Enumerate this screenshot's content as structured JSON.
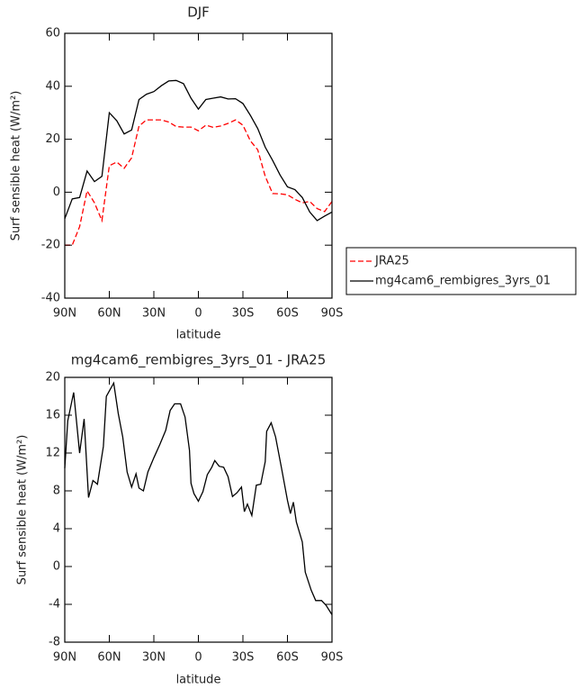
{
  "chart_data": [
    {
      "type": "line",
      "title": "DJF",
      "xlabel": "latitude",
      "ylabel": "Surf sensible heat (W/m²)",
      "x": [
        90,
        85,
        80,
        75,
        70,
        65,
        60,
        55,
        50,
        45,
        40,
        35,
        30,
        25,
        20,
        15,
        10,
        5,
        0,
        -5,
        -10,
        -15,
        -20,
        -25,
        -30,
        -35,
        -40,
        -45,
        -50,
        -55,
        -60,
        -65,
        -70,
        -75,
        -80,
        -85,
        -90
      ],
      "series": [
        {
          "name": "JRA25",
          "color": "#ff0000",
          "linestyle": "dashed",
          "values": [
            -20,
            -20,
            -13,
            0.5,
            -4,
            -10.7,
            10,
            11.4,
            9,
            13,
            25,
            27.3,
            27.3,
            27.3,
            26.5,
            24.8,
            24.6,
            24.6,
            23.2,
            25.3,
            24.5,
            25,
            26,
            27.3,
            25.3,
            19.4,
            16,
            6,
            -0.5,
            -0.6,
            -1,
            -2.7,
            -4,
            -3.5,
            -6.2,
            -7.3,
            -3.5
          ]
        },
        {
          "name": "mg4cam6_rembigres_3yrs_01",
          "color": "#000000",
          "linestyle": "solid",
          "values": [
            -10,
            -2.5,
            -2,
            8,
            4,
            6,
            30,
            27,
            22,
            23.5,
            35,
            37,
            38,
            40.2,
            42,
            42.2,
            41,
            35.5,
            31.4,
            35,
            35.5,
            36,
            35.2,
            35.3,
            33.5,
            29,
            24,
            17,
            12,
            6.5,
            2,
            1,
            -2,
            -7.5,
            -10.7,
            -9,
            -7.5
          ]
        }
      ],
      "xlim": [
        90,
        -90
      ],
      "xticks": [
        {
          "value": 90,
          "label": "90N"
        },
        {
          "value": 60,
          "label": "60N"
        },
        {
          "value": 30,
          "label": "30N"
        },
        0,
        {
          "value": -30,
          "label": "30S"
        },
        {
          "value": -60,
          "label": "60S"
        },
        {
          "value": -90,
          "label": "90S"
        }
      ],
      "ylim": [
        -40,
        60
      ],
      "yticks": [
        -40,
        -20,
        0,
        20,
        40,
        60
      ],
      "legend": "right"
    },
    {
      "type": "line",
      "title": "mg4cam6_rembigres_3yrs_01 - JRA25",
      "xlabel": "latitude",
      "ylabel": "Surf sensible heat (W/m²)",
      "x": [
        90,
        88,
        84,
        80,
        77,
        74,
        71,
        68,
        64,
        62,
        57,
        54,
        51,
        48,
        45,
        42,
        40,
        37,
        34,
        30,
        26,
        22,
        19,
        16,
        12,
        9,
        6,
        5,
        3,
        0,
        -3,
        -6,
        -9,
        -11,
        -14,
        -17,
        -20,
        -23,
        -26,
        -29,
        -31,
        -33,
        -36,
        -39,
        -42,
        -45,
        -46,
        -49,
        -52,
        -56,
        -60,
        -62,
        -64,
        -66,
        -70,
        -72,
        -76,
        -79,
        -83,
        -86,
        -90
      ],
      "series": [
        {
          "color": "#000000",
          "linestyle": "solid",
          "values": [
            10.4,
            15.4,
            18.4,
            12,
            15.6,
            7.3,
            9.1,
            8.7,
            12.7,
            18,
            19.4,
            16.2,
            13.7,
            10,
            8.4,
            9.8,
            8.3,
            8,
            10,
            11.5,
            12.9,
            14.4,
            16.5,
            17.2,
            17.2,
            15.8,
            12.3,
            8.8,
            7.7,
            6.9,
            7.9,
            9.7,
            10.5,
            11.2,
            10.6,
            10.5,
            9.5,
            7.4,
            7.8,
            8.4,
            5.8,
            6.6,
            5.4,
            8.6,
            8.7,
            11.1,
            14.3,
            15.2,
            13.7,
            10.4,
            7,
            5.6,
            6.8,
            4.7,
            2.6,
            -0.6,
            -2.5,
            -3.6,
            -3.6,
            -4.1,
            -5.1
          ]
        }
      ],
      "xlim": [
        90,
        -90
      ],
      "xticks": [
        {
          "value": 90,
          "label": "90N"
        },
        {
          "value": 60,
          "label": "60N"
        },
        {
          "value": 30,
          "label": "30N"
        },
        0,
        {
          "value": -30,
          "label": "30S"
        },
        {
          "value": -60,
          "label": "60S"
        },
        {
          "value": -90,
          "label": "90S"
        }
      ],
      "ylim": [
        -8,
        20
      ],
      "yticks": [
        -8,
        -4,
        0,
        4,
        8,
        12,
        16,
        20
      ]
    }
  ]
}
